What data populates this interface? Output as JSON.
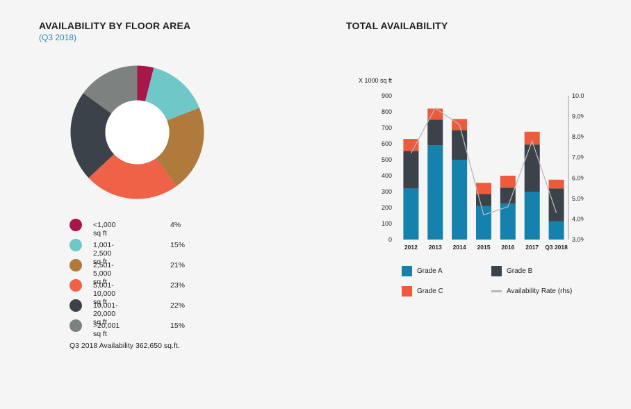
{
  "left": {
    "title": "AVAILABILITY BY FLOOR AREA",
    "subtitle": "(Q3 2018)",
    "footnote": "Q3 2018 Availability 362,650 sq.ft."
  },
  "right": {
    "title": "TOTAL AVAILABILITY"
  },
  "chart_data": [
    {
      "type": "pie",
      "title": "AVAILABILITY BY FLOOR AREA",
      "subtitle": "(Q3 2018)",
      "donut": true,
      "slices": [
        {
          "label": "<1,000 sq ft",
          "value": 4,
          "display": "4%",
          "color": "#a8174a"
        },
        {
          "label": "1,001-2,500 sq ft",
          "value": 15,
          "display": "15%",
          "color": "#6fc7c8"
        },
        {
          "label": "2,501-5,000 sq ft",
          "value": 21,
          "display": "21%",
          "color": "#b07a3c"
        },
        {
          "label": "5,001-10,000 sq ft",
          "value": 23,
          "display": "23%",
          "color": "#ee6347"
        },
        {
          "label": "10,001-20,000 sq ft",
          "value": 22,
          "display": "22%",
          "color": "#3b424a"
        },
        {
          "label": ">20,001 sq ft",
          "value": 15,
          "display": "15%",
          "color": "#7d817f"
        }
      ],
      "legend_position": "bottom"
    },
    {
      "type": "bar",
      "stacked": true,
      "title": "TOTAL AVAILABILITY",
      "ylabel": "X 1000 sq ft",
      "categories": [
        "2012",
        "2013",
        "2014",
        "2015",
        "2016",
        "2017",
        "Q3 2018"
      ],
      "ylim": [
        0,
        900
      ],
      "yticks": [
        "0",
        "100",
        "200",
        "300",
        "400",
        "500",
        "600",
        "700",
        "800",
        "900"
      ],
      "y2lim": [
        3.0,
        10.0
      ],
      "y2ticks": [
        "3.0%",
        "4.0%",
        "5.0%",
        "6.0%",
        "7.0%",
        "8.0%",
        "9.0%",
        "10.0%"
      ],
      "series": [
        {
          "name": "Grade A",
          "color": "#1581ad",
          "values": [
            320,
            590,
            500,
            210,
            225,
            300,
            115
          ]
        },
        {
          "name": "Grade B",
          "color": "#3b424a",
          "values": [
            235,
            160,
            185,
            75,
            100,
            295,
            205
          ]
        },
        {
          "name": "Grade C",
          "color": "#ee5a3c",
          "values": [
            75,
            70,
            70,
            70,
            75,
            80,
            55
          ]
        }
      ],
      "line": {
        "name": "Availability Rate (rhs)",
        "color": "#b8b8b8",
        "axis": "right",
        "values": [
          7.2,
          9.4,
          8.6,
          4.2,
          4.6,
          7.8,
          4.3
        ]
      },
      "legend_position": "bottom",
      "grid": false
    }
  ]
}
